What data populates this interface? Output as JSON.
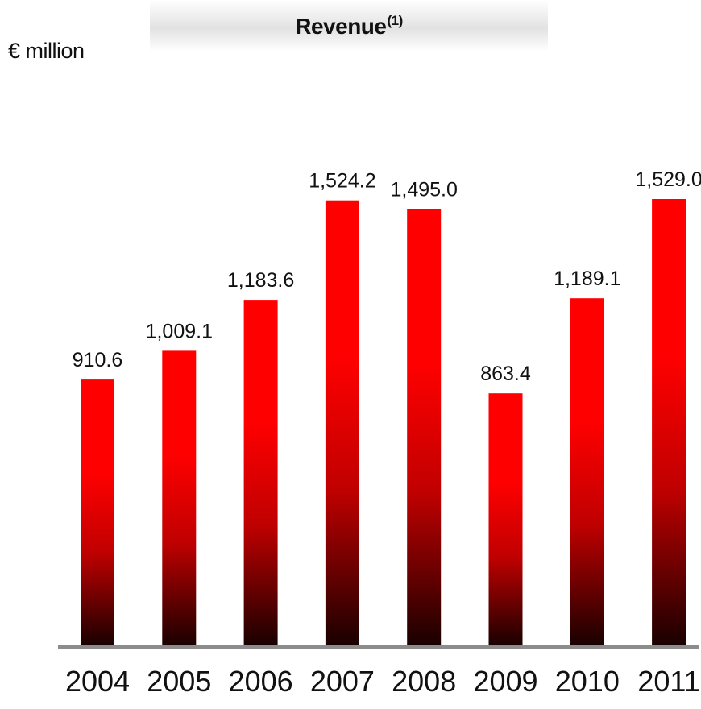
{
  "chart_data": {
    "type": "bar",
    "title": "Revenue",
    "title_footnote": "(1)",
    "ylabel": "€ million",
    "xlabel": "",
    "categories": [
      "2004",
      "2005",
      "2006",
      "2007",
      "2008",
      "2009",
      "2010",
      "2011"
    ],
    "values": [
      910.6,
      1009.1,
      1183.6,
      1524.2,
      1495.0,
      863.4,
      1189.1,
      1529.0
    ],
    "value_labels": [
      "910.6",
      "1,009.1",
      "1,183.6",
      "1,524.2",
      "1,495.0",
      "863.4",
      "1,189.1",
      "1,529.0"
    ],
    "ylim": [
      0,
      1529.0
    ],
    "grid": false,
    "legend": "none",
    "colors": {
      "bar_top": "#ff0000",
      "bar_mid": "#c00000",
      "bar_bottom": "#1a0000",
      "axis": "#8c8c8c"
    }
  }
}
